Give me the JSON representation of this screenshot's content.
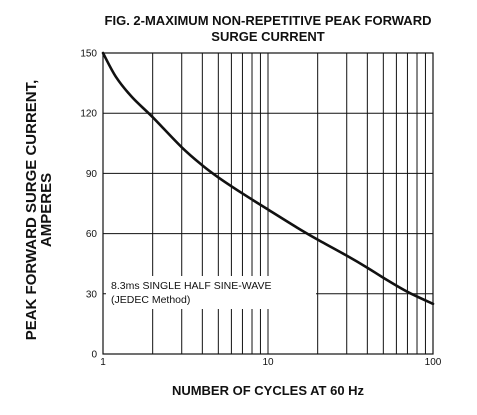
{
  "chart_data": {
    "type": "line",
    "title_line1": "FIG. 2-MAXIMUM NON-REPETITIVE PEAK FORWARD",
    "title_line2": "SURGE CURRENT",
    "xlabel": "NUMBER OF CYCLES AT 60 Hz",
    "ylabel_line1": "PEAK  FORWARD SURGE CURRENT,",
    "ylabel_line2": "AMPERES",
    "x_scale": "log",
    "xlim": [
      1,
      100
    ],
    "ylim": [
      0,
      150
    ],
    "x_ticks": [
      1,
      10,
      100
    ],
    "x_tick_labels": [
      "1",
      "10",
      "100"
    ],
    "y_ticks": [
      0,
      30,
      60,
      90,
      120,
      150
    ],
    "y_tick_labels": [
      "0",
      "30",
      "60",
      "90",
      "120",
      "150"
    ],
    "grid": true,
    "series": [
      {
        "x": [
          1,
          1.2,
          1.5,
          2,
          3,
          4,
          5,
          7,
          10,
          15,
          20,
          30,
          40,
          50,
          70,
          100
        ],
        "y": [
          150,
          138,
          128,
          118,
          103,
          94,
          88,
          80,
          72,
          63,
          57,
          49,
          43,
          38,
          31,
          25
        ]
      }
    ],
    "annotation_line1": "8.3ms SINGLE HALF SINE-WAVE",
    "annotation_line2": "(JEDEC Method)"
  }
}
